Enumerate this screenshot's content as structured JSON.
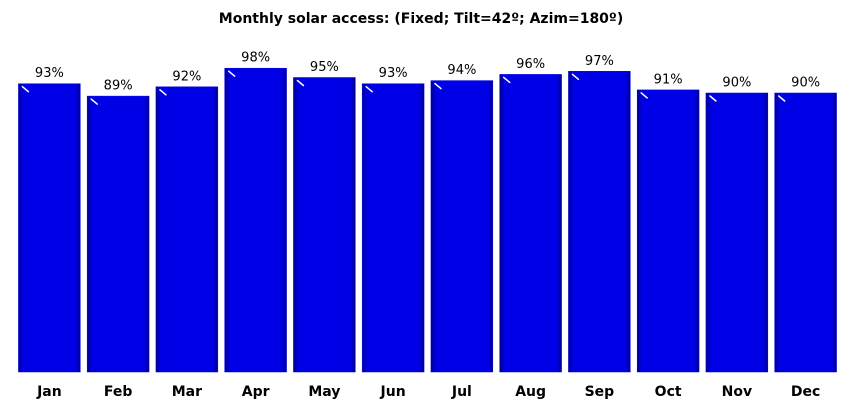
{
  "chart_data": {
    "type": "bar",
    "title": "Monthly solar access: (Fixed; Tilt=42º; Azim=180º)",
    "categories": [
      "Jan",
      "Feb",
      "Mar",
      "Apr",
      "May",
      "Jun",
      "Jul",
      "Aug",
      "Sep",
      "Oct",
      "Nov",
      "Dec"
    ],
    "values": [
      93,
      89,
      92,
      98,
      95,
      93,
      94,
      96,
      97,
      91,
      90,
      90
    ],
    "value_labels": [
      "93%",
      "89%",
      "92%",
      "98%",
      "95%",
      "93%",
      "94%",
      "96%",
      "97%",
      "91%",
      "90%",
      "90%"
    ],
    "color": "#0000e6",
    "ylim": [
      0,
      100
    ]
  }
}
